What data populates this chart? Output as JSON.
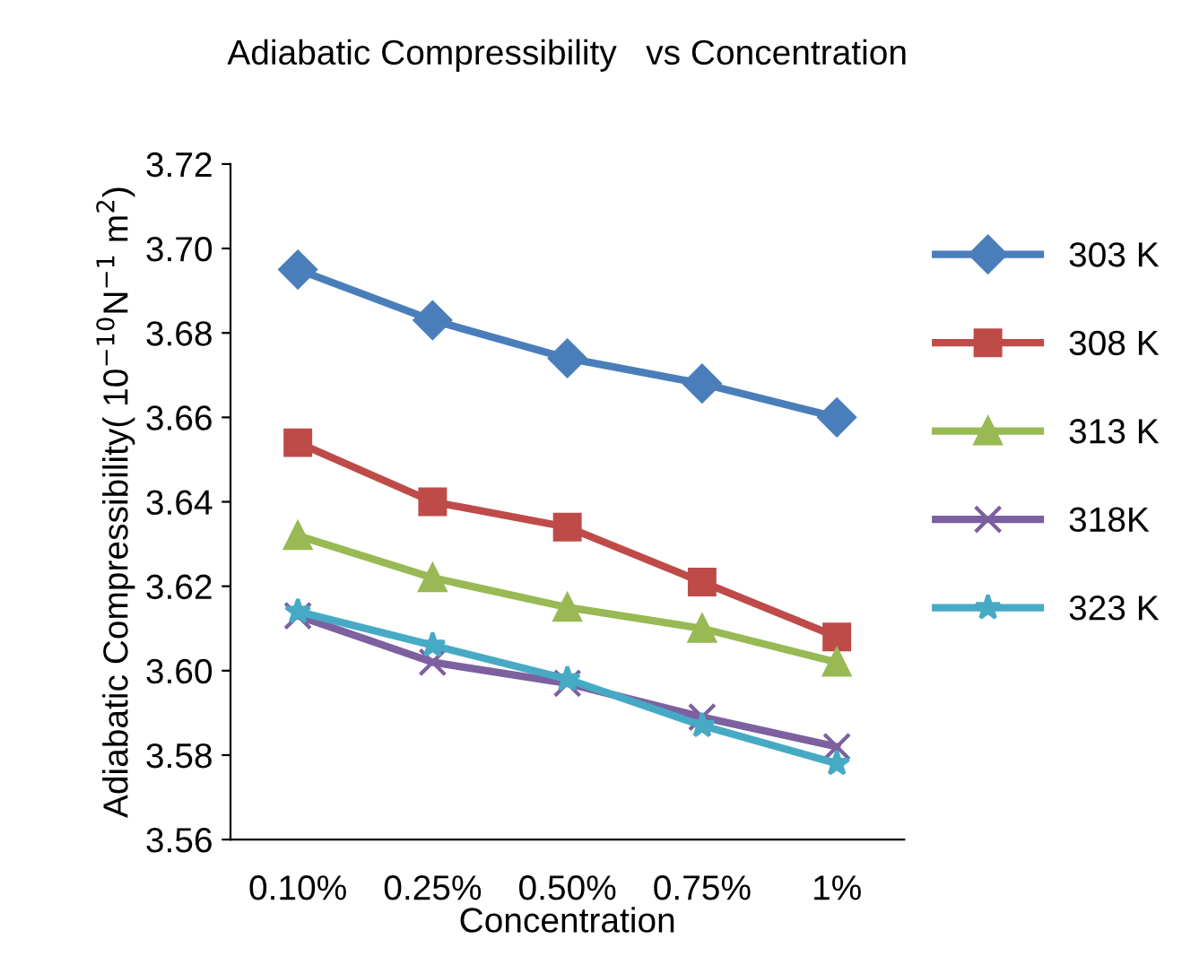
{
  "chart_data": {
    "type": "line",
    "title": "Adiabatic Compressibility   vs Concentration",
    "xlabel": "Concentration",
    "ylabel": "Adiabatic Compressibility( 10$^{−10}$N$^{−1}$ m$^{2}$)",
    "categories": [
      "0.10%",
      "0.25%",
      "0.50%",
      "0.75%",
      "1%"
    ],
    "series": [
      {
        "name": "303 K",
        "color": "#4a7ebb",
        "marker": "diamond",
        "values": [
          3.695,
          3.683,
          3.674,
          3.668,
          3.66
        ]
      },
      {
        "name": "308 K",
        "color": "#be4b48",
        "marker": "square",
        "values": [
          3.654,
          3.64,
          3.634,
          3.621,
          3.608
        ]
      },
      {
        "name": "313 K",
        "color": "#98b954",
        "marker": "triangle",
        "values": [
          3.632,
          3.622,
          3.615,
          3.61,
          3.602
        ]
      },
      {
        "name": "318K",
        "color": "#7d60a0",
        "marker": "cross",
        "values": [
          3.613,
          3.602,
          3.597,
          3.589,
          3.582
        ]
      },
      {
        "name": "323 K",
        "color": "#46aac5",
        "marker": "star",
        "values": [
          3.614,
          3.606,
          3.598,
          3.587,
          3.578
        ]
      }
    ],
    "ylim": [
      3.56,
      3.72
    ],
    "yticks": [
      3.56,
      3.58,
      {
        "value": 3.6,
        "label": "3.60"
      },
      3.62,
      3.64,
      3.66,
      3.68,
      {
        "value": 3.7,
        "label": "3.70"
      },
      3.72
    ],
    "grid": false,
    "legend": "right"
  }
}
